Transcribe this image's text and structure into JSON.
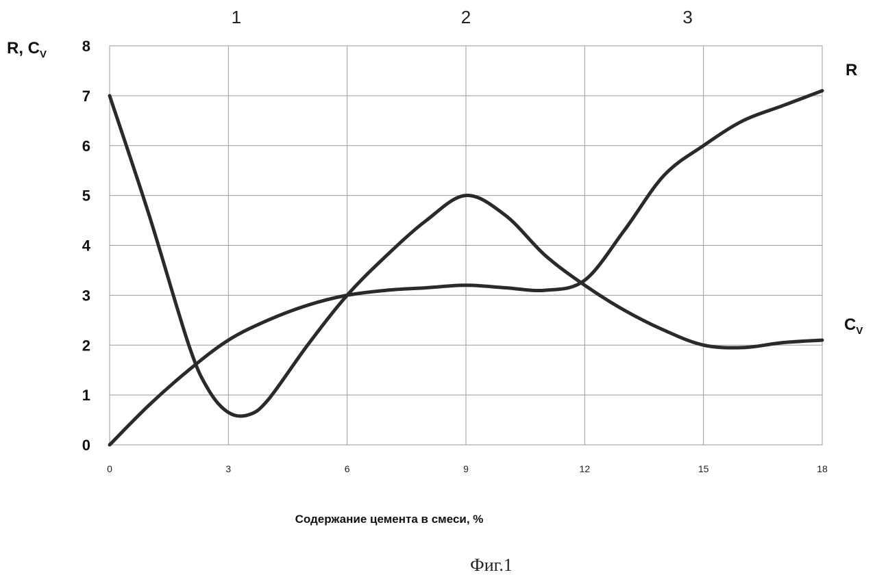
{
  "chart_data": {
    "type": "line",
    "xlabel": "Содержание цемента в смеси,  %",
    "ylabel": "R, C",
    "ylabel_subscript": "V",
    "xlim": [
      0,
      18
    ],
    "ylim": [
      0,
      8
    ],
    "x_ticks": [
      "0",
      "3",
      "6",
      "9",
      "12",
      "15",
      "18"
    ],
    "y_ticks": [
      "0",
      "1",
      "2",
      "3",
      "4",
      "5",
      "6",
      "7",
      "8"
    ],
    "zone_labels": [
      {
        "text": "1",
        "x": 3.2
      },
      {
        "text": "2",
        "x": 9.0
      },
      {
        "text": "3",
        "x": 14.6
      }
    ],
    "grid": true,
    "series": [
      {
        "name": "R",
        "x": [
          0,
          1,
          2,
          3,
          4,
          5,
          6,
          7,
          8,
          9,
          10,
          11,
          12,
          13,
          14,
          15,
          16,
          17,
          18
        ],
        "y": [
          0,
          0.8,
          1.5,
          2.1,
          2.5,
          2.8,
          3.0,
          3.1,
          3.15,
          3.2,
          3.15,
          3.1,
          3.3,
          4.3,
          5.4,
          6.0,
          6.5,
          6.8,
          7.1
        ]
      },
      {
        "name": "C",
        "name_subscript": "V",
        "x": [
          0,
          1,
          2,
          2.5,
          3,
          3.5,
          4,
          5,
          6,
          7,
          8,
          9,
          10,
          11,
          12,
          13,
          14,
          15,
          16,
          17,
          18
        ],
        "y": [
          7.0,
          4.6,
          2.0,
          1.1,
          0.65,
          0.6,
          0.9,
          2.0,
          3.0,
          3.8,
          4.5,
          5.0,
          4.6,
          3.8,
          3.2,
          2.7,
          2.3,
          2.0,
          1.95,
          2.05,
          2.1
        ]
      }
    ]
  },
  "caption": "Фиг.1"
}
